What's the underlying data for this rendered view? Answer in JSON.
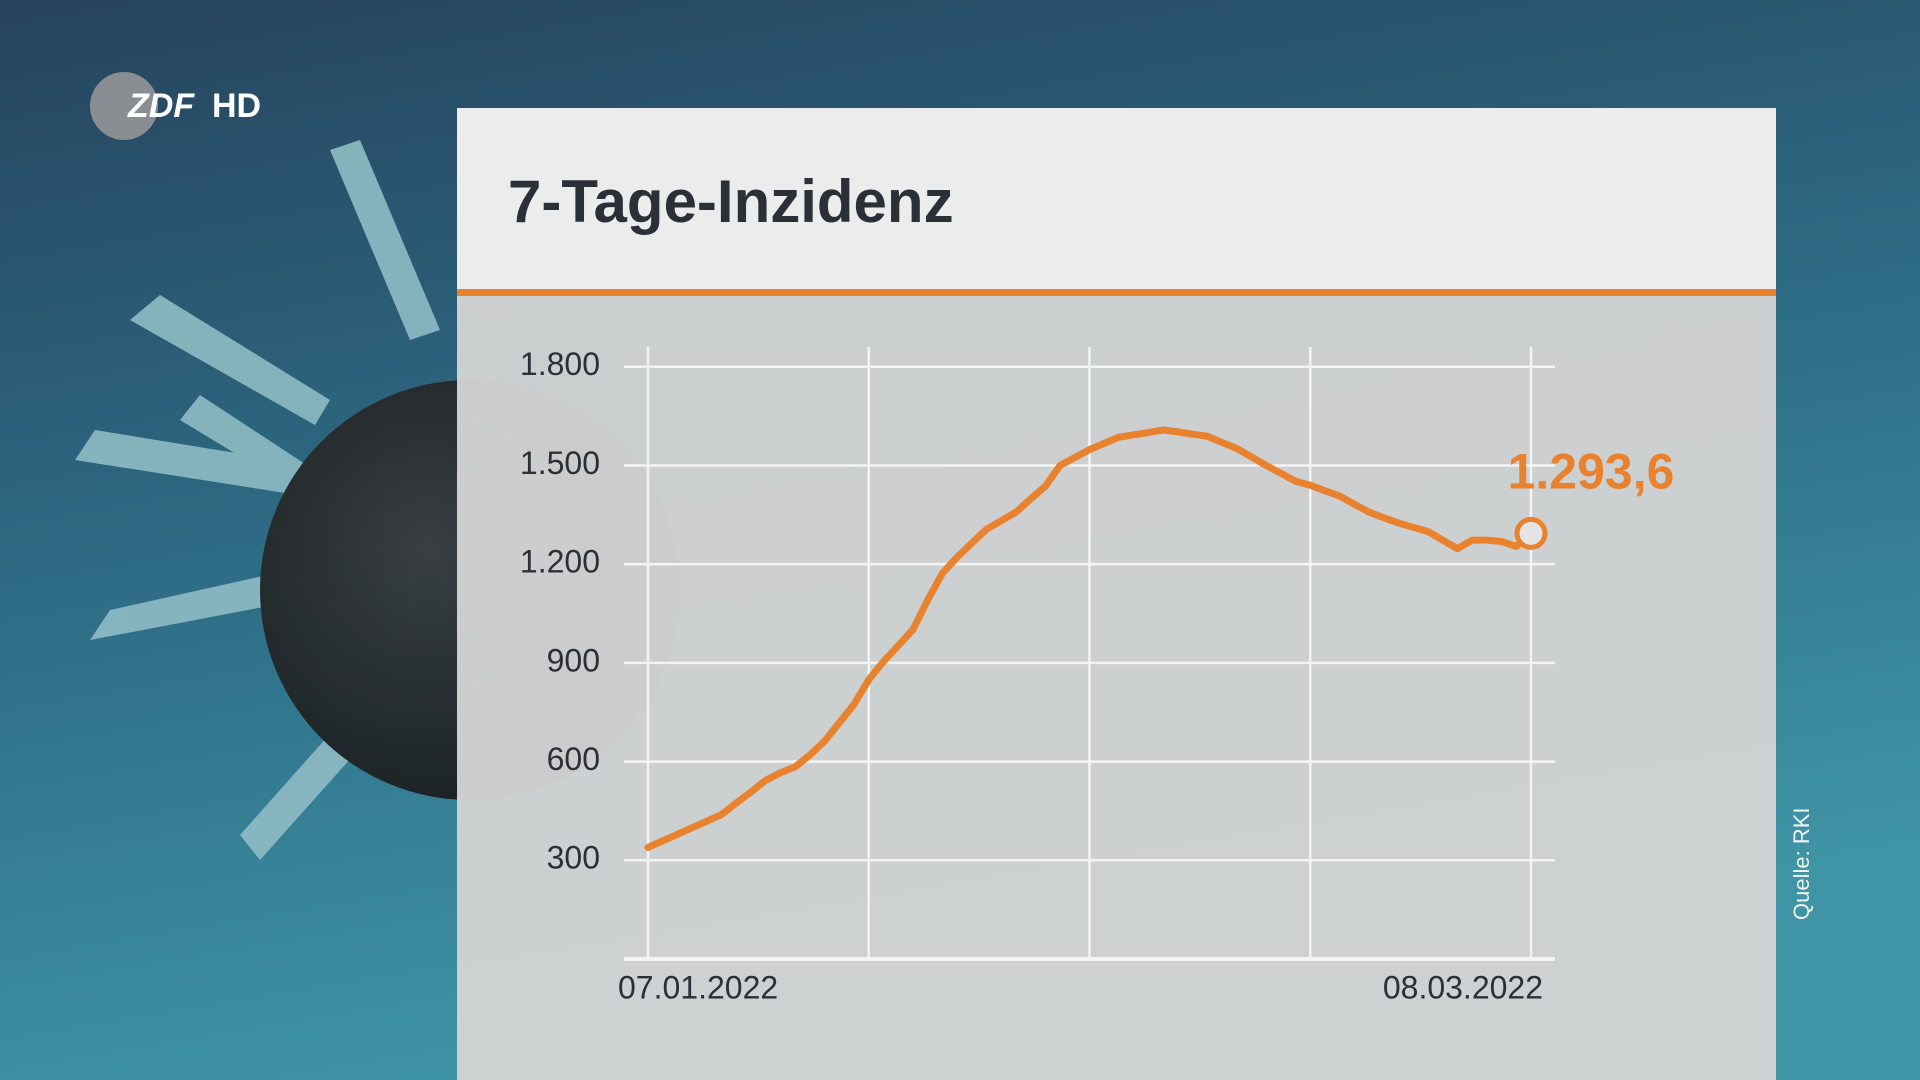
{
  "logo": {
    "channel": "ZDF",
    "suffix": "HD"
  },
  "source": "Quelle: RKI",
  "chart_data": {
    "type": "line",
    "title": "7-Tage-Inzidenz",
    "categories": [
      "07.01.2022",
      null,
      null,
      null,
      null,
      null,
      null,
      null,
      null,
      null,
      null,
      null,
      null,
      null,
      null,
      null,
      null,
      null,
      null,
      null,
      null,
      null,
      null,
      null,
      null,
      null,
      null,
      null,
      null,
      null,
      null,
      null,
      null,
      null,
      null,
      null,
      null,
      null,
      null,
      null,
      null,
      null,
      null,
      null,
      null,
      null,
      null,
      null,
      null,
      null,
      null,
      null,
      null,
      null,
      null,
      null,
      null,
      null,
      null,
      null,
      "08.03.2022"
    ],
    "values": [
      339,
      359,
      379,
      399,
      419,
      439,
      474,
      508,
      543,
      566,
      584,
      620,
      662,
      718,
      774,
      849,
      904,
      952,
      1001,
      1090,
      1172,
      1221,
      1264,
      1306,
      1332,
      1358,
      1398,
      1437,
      1500,
      1524,
      1548,
      1567,
      1586,
      1593,
      1600,
      1608,
      1602,
      1595,
      1589,
      1570,
      1552,
      1526,
      1500,
      1476,
      1452,
      1440,
      1423,
      1407,
      1382,
      1358,
      1341,
      1325,
      1312,
      1299,
      1273,
      1247,
      1273,
      1273,
      1269,
      1254,
      1293.6
    ],
    "value_labels": [
      null,
      null,
      null,
      null,
      null,
      null,
      null,
      null,
      null,
      null,
      null,
      null,
      null,
      null,
      null,
      null,
      null,
      null,
      null,
      null,
      null,
      null,
      null,
      null,
      null,
      null,
      null,
      null,
      null,
      null,
      null,
      null,
      null,
      null,
      null,
      null,
      null,
      null,
      null,
      null,
      null,
      null,
      null,
      null,
      null,
      null,
      null,
      null,
      null,
      null,
      null,
      null,
      null,
      null,
      null,
      null,
      null,
      null,
      null,
      null,
      "1.293,6"
    ],
    "color": "#e8822e",
    "ylim": [
      0,
      1860
    ],
    "yticks": [
      300,
      600,
      900,
      {
        "value": 1200,
        "label": "1.200"
      },
      {
        "value": 1500,
        "label": "1.500"
      },
      {
        "value": 1800,
        "label": "1.800"
      }
    ],
    "grid": true
  }
}
